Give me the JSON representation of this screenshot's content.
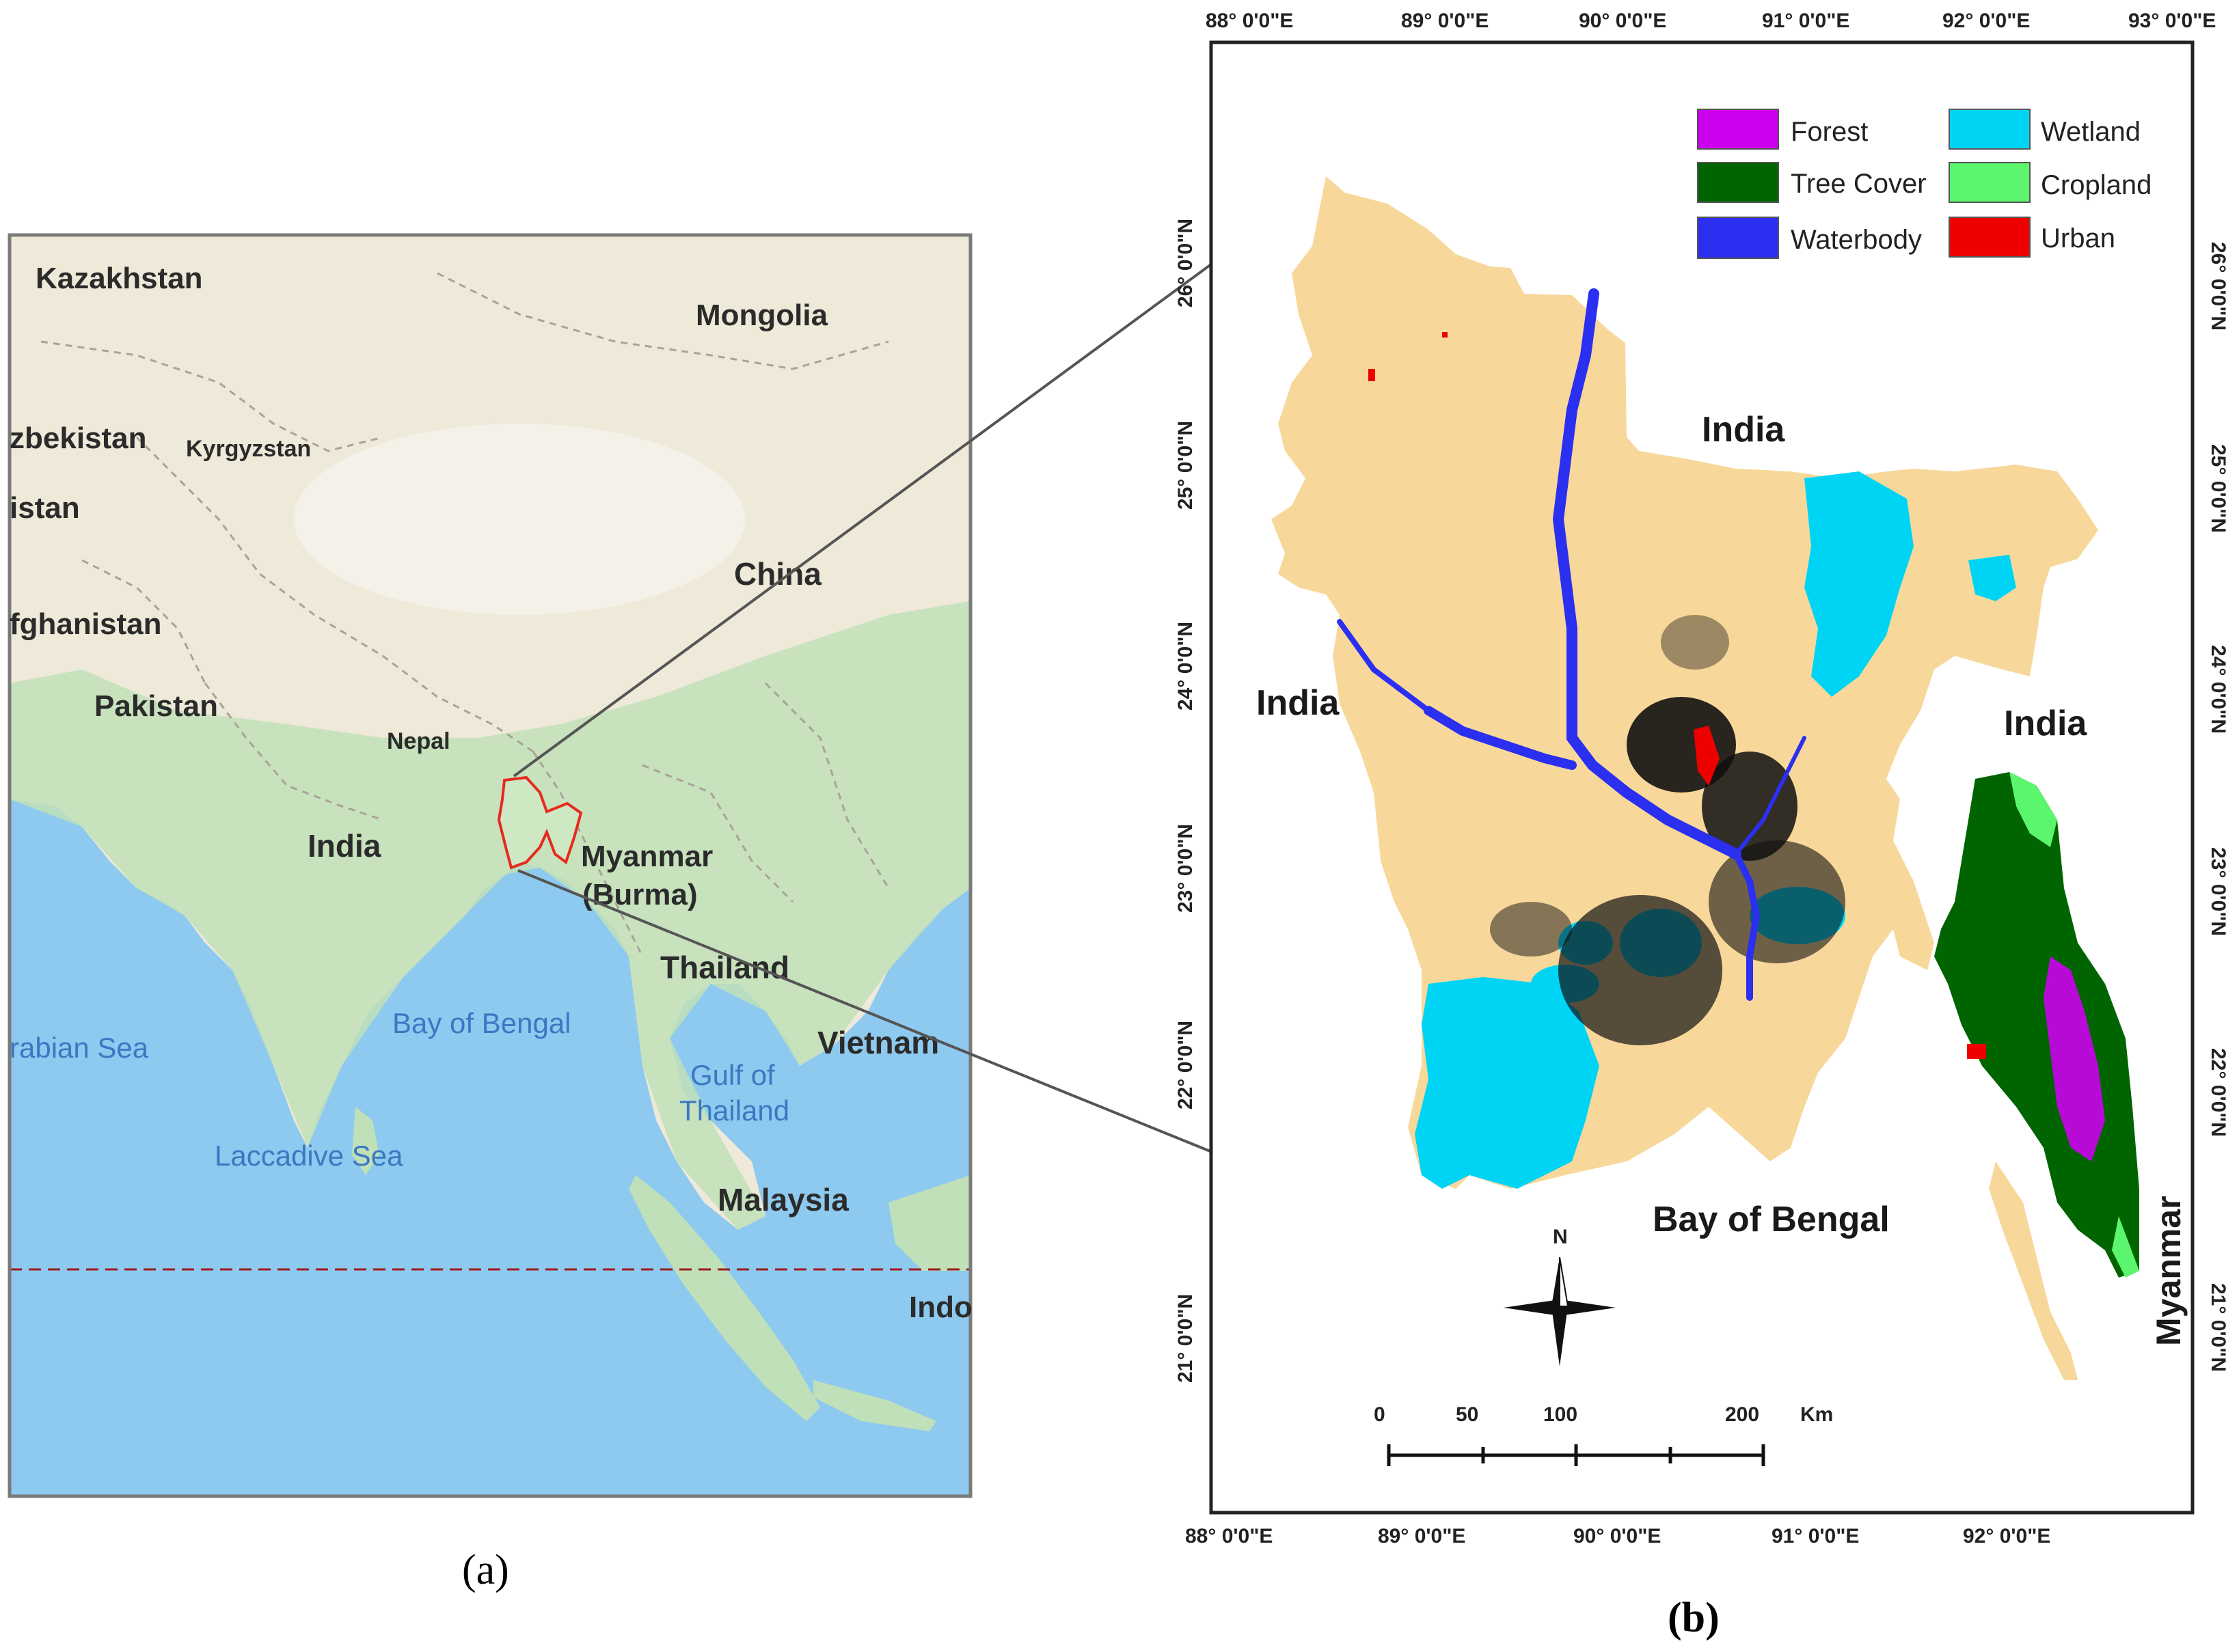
{
  "panel_a": {
    "country_labels": [
      "Kazakhstan",
      "Mongolia",
      "zbekistan",
      "Kyrgyzstan",
      "istan",
      "China",
      "fghanistan",
      "Pakistan",
      "Nepal",
      "India",
      "Myanmar",
      "(Burma)",
      "Thailand",
      "Vietnam",
      "Malaysia",
      "Indo"
    ],
    "water_labels": [
      "rabian Sea",
      "Bay of Bengal",
      "Gulf of",
      "Thailand",
      "Laccadive Sea"
    ],
    "caption": "(a)"
  },
  "panel_b": {
    "legend": [
      {
        "label": "Forest",
        "color": "#cc00ee"
      },
      {
        "label": "Wetland",
        "color": "#00d4f5"
      },
      {
        "label": "Tree Cover",
        "color": "#006400"
      },
      {
        "label": "Cropland",
        "color": "#5cf56e"
      },
      {
        "label": "Waterbody",
        "color": "#2a2ff0"
      },
      {
        "label": "Urban",
        "color": "#ee0000"
      }
    ],
    "top_ticks": [
      "88° 0'0\"E",
      "89° 0'0\"E",
      "90° 0'0\"E",
      "91° 0'0\"E",
      "92° 0'0\"E",
      "93° 0'0\"E"
    ],
    "bottom_ticks": [
      "88° 0'0\"E",
      "89° 0'0\"E",
      "90° 0'0\"E",
      "91° 0'0\"E",
      "92° 0'0\"E"
    ],
    "lat_ticks": [
      "26° 0'0\"N",
      "25° 0'0\"N",
      "24° 0'0\"N",
      "23° 0'0\"N",
      "22° 0'0\"N",
      "21° 0'0\"N"
    ],
    "labels": {
      "india_n": "India",
      "india_w": "India",
      "india_e": "India",
      "bay": "Bay of Bengal",
      "myanmar": "Myanmar"
    },
    "north": "N",
    "scale_numbers": [
      "0",
      "50",
      "100",
      "200"
    ],
    "scale_unit": "Km",
    "caption": "(b)"
  }
}
